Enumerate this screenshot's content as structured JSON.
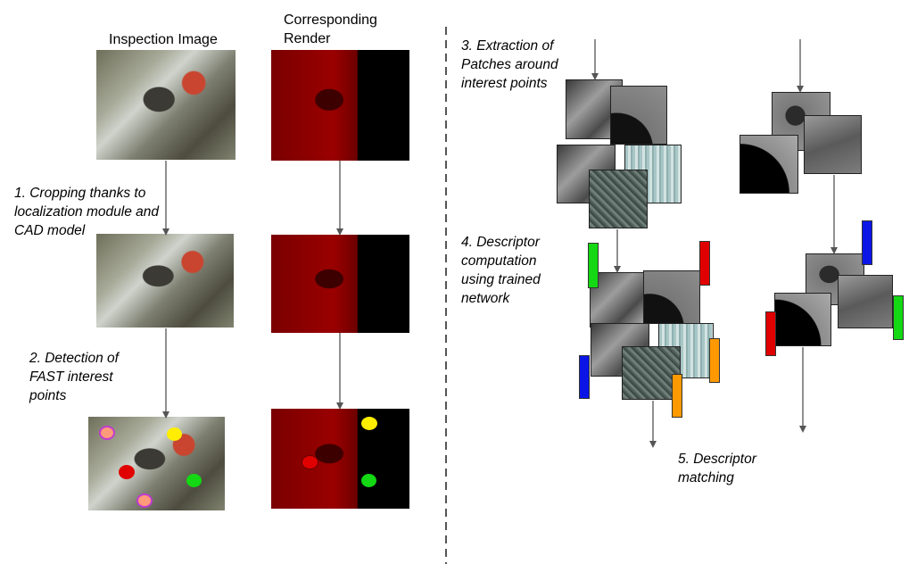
{
  "headers": {
    "inspection": "Inspection Image",
    "render_line1": "Corresponding",
    "render_line2": "Render"
  },
  "steps": {
    "s1": [
      "1. Cropping thanks to",
      "localization module and",
      "CAD model"
    ],
    "s2": [
      "2. Detection of",
      "FAST interest",
      "points"
    ],
    "s3": [
      "3. Extraction of",
      "Patches around",
      "interest points"
    ],
    "s4": [
      "4. Descriptor",
      "computation",
      "using trained",
      "network"
    ],
    "s5": [
      "5. Descriptor",
      "matching"
    ]
  },
  "colors": {
    "red": "#e00000",
    "green": "#13d813",
    "blue": "#0b16e6",
    "orange": "#ff9900",
    "yellow": "#ffee00",
    "pink": "#ff9a7a",
    "arrow": "#555555",
    "divider": "#555555"
  },
  "descriptor_bars_left": [
    "green",
    "red",
    "blue",
    "orange",
    "orange"
  ],
  "descriptor_bars_right": [
    "blue",
    "red",
    "green"
  ]
}
